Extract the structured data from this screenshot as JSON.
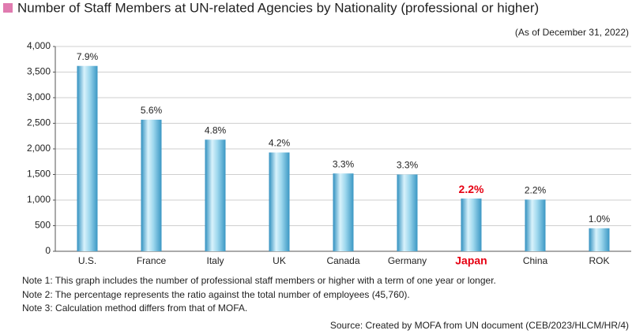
{
  "chart_data": {
    "type": "bar",
    "title": "Number of Staff Members at UN-related Agencies by Nationality (professional or higher)",
    "subtitle": "(As of December 31, 2022)",
    "categories": [
      "U.S.",
      "France",
      "Italy",
      "UK",
      "Canada",
      "Germany",
      "Japan",
      "China",
      "ROK"
    ],
    "values": [
      3620,
      2570,
      2180,
      1930,
      1520,
      1500,
      1030,
      1010,
      450
    ],
    "share_labels": [
      "7.9%",
      "5.6%",
      "4.8%",
      "4.2%",
      "3.3%",
      "3.3%",
      "2.2%",
      "2.2%",
      "1.0%"
    ],
    "color": "#5bb7d6",
    "highlight_index": 6,
    "highlight_color": "#e60012",
    "ylim": [
      0,
      4000
    ],
    "yticks": [
      0,
      500,
      {
        "value": 1000,
        "label": "1,000"
      },
      {
        "value": 1500,
        "label": "1,500"
      },
      {
        "value": 2000,
        "label": "2,000"
      },
      {
        "value": 2500,
        "label": "2,500"
      },
      {
        "value": 3000,
        "label": "3,000"
      },
      {
        "value": 3500,
        "label": "3,500"
      },
      {
        "value": 4000,
        "label": "4,000"
      }
    ],
    "grid": true,
    "notes": [
      "Note 1: This graph includes the number of professional staff members or higher with a term of one year or longer.",
      "Note 2: The percentage represents the ratio against the total number of employees (45,760).",
      "Note 3: Calculation method differs from that of MOFA."
    ],
    "source": "Source: Created by MOFA from UN document (CEB/2023/HLCM/HR/4)"
  }
}
